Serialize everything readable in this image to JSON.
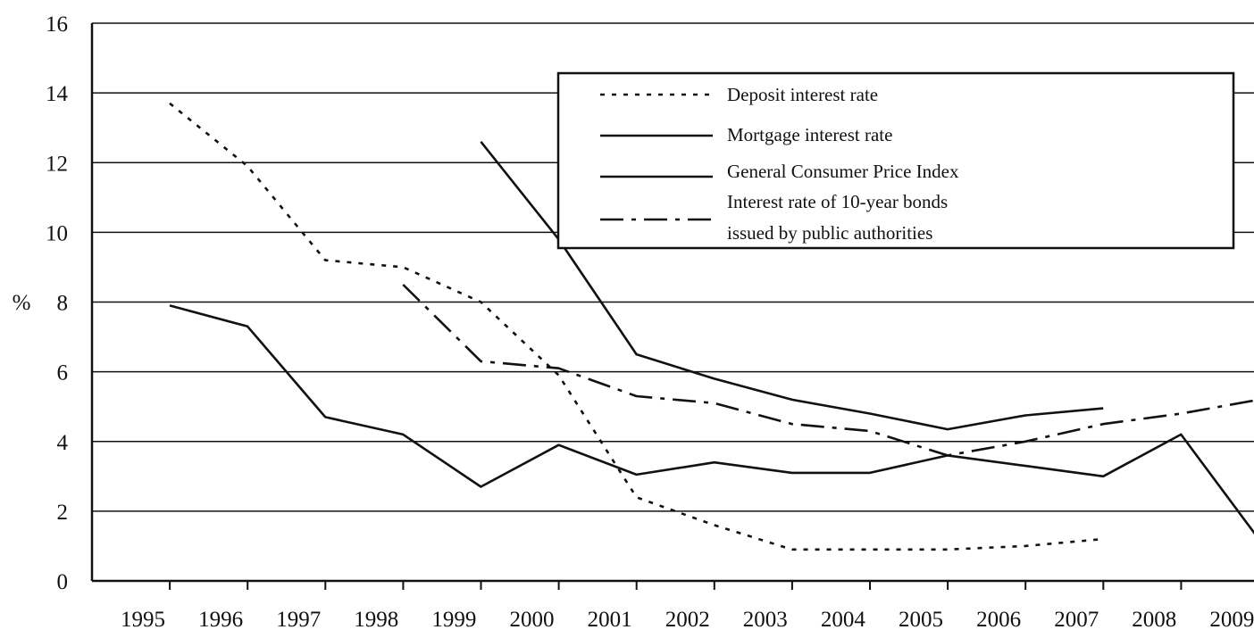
{
  "chart_data": {
    "type": "line",
    "title": "",
    "xlabel": "",
    "ylabel": "%",
    "categories": [
      "1995",
      "1996",
      "1997",
      "1998",
      "1999",
      "2000",
      "2001",
      "2002",
      "2003",
      "2004",
      "2005",
      "2006",
      "2007",
      "2008",
      "2009"
    ],
    "yticks": [
      "0",
      "2",
      "4",
      "6",
      "8",
      "10",
      "12",
      "14",
      "16"
    ],
    "ylim": [
      0,
      16
    ],
    "grid": "horizontal",
    "legend_position": "top-right",
    "series": [
      {
        "name": "Deposit interest rate",
        "style": "dotted",
        "points": [
          [
            1995,
            13.7
          ],
          [
            1996,
            11.9
          ],
          [
            1997,
            9.2
          ],
          [
            1998,
            9.0
          ],
          [
            1999,
            8.0
          ],
          [
            2000,
            5.9
          ],
          [
            2001,
            2.4
          ],
          [
            2002,
            1.6
          ],
          [
            2003,
            0.9
          ],
          [
            2004,
            0.9
          ],
          [
            2005,
            0.9
          ],
          [
            2006,
            1.0
          ],
          [
            2007,
            1.2
          ]
        ]
      },
      {
        "name": "Mortgage interest rate",
        "style": "solid",
        "points": [
          [
            1999,
            12.6
          ],
          [
            2000,
            9.8
          ],
          [
            2001,
            6.5
          ],
          [
            2002,
            5.8
          ],
          [
            2003,
            5.2
          ],
          [
            2004,
            4.8
          ],
          [
            2005,
            4.35
          ],
          [
            2006,
            4.75
          ],
          [
            2007,
            4.95
          ]
        ]
      },
      {
        "name": "General Consumer Price Index",
        "style": "solid",
        "points": [
          [
            1995,
            7.9
          ],
          [
            1996,
            7.3
          ],
          [
            1997,
            4.7
          ],
          [
            1998,
            4.2
          ],
          [
            1999,
            2.7
          ],
          [
            2000,
            3.9
          ],
          [
            2001,
            3.05
          ],
          [
            2002,
            3.4
          ],
          [
            2003,
            3.1
          ],
          [
            2004,
            3.1
          ],
          [
            2005,
            3.6
          ],
          [
            2006,
            3.3
          ],
          [
            2007,
            3.0
          ],
          [
            2008,
            4.2
          ],
          [
            2009,
            1.2
          ]
        ]
      },
      {
        "name": "Interest rate of 10-year bonds issued by public authorities",
        "name_lines": [
          "Interest rate of 10-year bonds",
          "issued by public authorities"
        ],
        "style": "dash-dot",
        "points": [
          [
            1998,
            8.5
          ],
          [
            1999,
            6.3
          ],
          [
            2000,
            6.1
          ],
          [
            2001,
            5.3
          ],
          [
            2002,
            5.1
          ],
          [
            2003,
            4.5
          ],
          [
            2004,
            4.3
          ],
          [
            2005,
            3.6
          ],
          [
            2006,
            4.0
          ],
          [
            2007,
            4.5
          ],
          [
            2008,
            4.8
          ],
          [
            2009,
            5.2
          ]
        ]
      }
    ]
  }
}
